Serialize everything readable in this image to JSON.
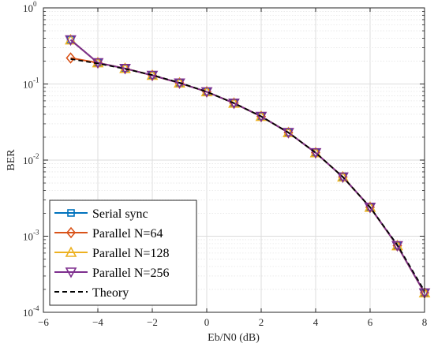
{
  "chart_data": {
    "type": "line",
    "xlabel": "Eb/N0 (dB)",
    "ylabel": "BER",
    "xlim": [
      -6,
      8
    ],
    "ylim": [
      0.0001,
      1
    ],
    "yscale": "log",
    "grid": true,
    "legend_position": "bottom-left",
    "x_ticks": [
      -6,
      -4,
      -2,
      0,
      2,
      4,
      6,
      8
    ],
    "x_tick_labels": [
      "−6",
      "−4",
      "−2",
      "0",
      "2",
      "4",
      "6",
      "8"
    ],
    "y_ticks": [
      {
        "base": "10",
        "exp": "0"
      },
      {
        "base": "10",
        "exp": "-1"
      },
      {
        "base": "10",
        "exp": "-2"
      },
      {
        "base": "10",
        "exp": "-3"
      },
      {
        "base": "10",
        "exp": "-4"
      }
    ],
    "x": [
      -5,
      -4,
      -3,
      -2,
      -1,
      0,
      1,
      2,
      3,
      4,
      5,
      6,
      7,
      8
    ],
    "series": [
      {
        "name": "Serial sync",
        "color": "#0072BD",
        "marker": "square",
        "line": "solid",
        "values": [
          0.38,
          0.19,
          0.16,
          0.13,
          0.103,
          0.079,
          0.056,
          0.0375,
          0.023,
          0.0125,
          0.006,
          0.0024,
          0.00075,
          0.00018
        ]
      },
      {
        "name": "Parallel N=64",
        "color": "#D95319",
        "marker": "diamond",
        "line": "solid",
        "values": [
          0.22,
          0.19,
          0.16,
          0.13,
          0.103,
          0.079,
          0.056,
          0.0375,
          0.023,
          0.0125,
          0.006,
          0.0024,
          0.00075,
          0.00018
        ]
      },
      {
        "name": "Parallel N=128",
        "color": "#EDB120",
        "marker": "triangle-up",
        "line": "solid",
        "values": [
          0.38,
          0.19,
          0.16,
          0.13,
          0.103,
          0.079,
          0.056,
          0.0375,
          0.023,
          0.0125,
          0.006,
          0.0024,
          0.00075,
          0.00018
        ]
      },
      {
        "name": "Parallel N=256",
        "color": "#7E2F8E",
        "marker": "triangle-down",
        "line": "solid",
        "values": [
          0.38,
          0.19,
          0.16,
          0.13,
          0.103,
          0.079,
          0.056,
          0.0375,
          0.023,
          0.0125,
          0.006,
          0.0024,
          0.00075,
          0.00018
        ]
      },
      {
        "name": "Theory",
        "color": "#000000",
        "marker": "none",
        "line": "dashed",
        "values": [
          0.213,
          0.186,
          0.158,
          0.131,
          0.104,
          0.079,
          0.056,
          0.0375,
          0.023,
          0.0125,
          0.006,
          0.0024,
          0.00077,
          0.00019
        ]
      }
    ]
  }
}
